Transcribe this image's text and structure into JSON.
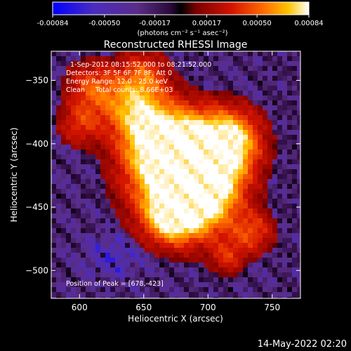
{
  "colorbar": {
    "tick_labels": [
      "-0.00084",
      "-0.00050",
      "-0.00017",
      "0.00017",
      "0.00050",
      "0.00084"
    ],
    "tick_values": [
      -0.00084,
      -0.0005,
      -0.00017,
      0.00017,
      0.0005,
      0.00084
    ],
    "range": [
      -0.00084,
      0.00084
    ],
    "units_label": "(photons cm⁻² s⁻¹ asec⁻²)",
    "colors": [
      "#0000ff",
      "#4b2cc0",
      "#5a2d88",
      "#2a0a3a",
      "#7a0000",
      "#d41400",
      "#ff6a00",
      "#ffc400",
      "#ffffff"
    ]
  },
  "chart_data": {
    "type": "heatmap",
    "title": "Reconstructed RHESSI Image",
    "xlabel": "Heliocentric X (arcsec)",
    "ylabel": "Heliocentric Y (arcsec)",
    "xlim": [
      578,
      772
    ],
    "ylim": [
      -522,
      -327
    ],
    "x_ticks": [
      600,
      650,
      700,
      750
    ],
    "y_ticks": [
      -350,
      -400,
      -450,
      -500
    ],
    "x_tick_labels": [
      "600",
      "650",
      "700",
      "750"
    ],
    "y_tick_labels": [
      "−350",
      "−400",
      "−450",
      "−500"
    ],
    "annotations": [
      "1-Sep-2012 08:15:52.000 to 08:21:52.000",
      "Detectors: 3F 5F 6F 7F 8F, Att 0",
      "Energy Range: 12.0 - 25.0 keV",
      "Clean     Total counts: 8.66E+03"
    ],
    "peak_label": "Position of Peak = [678,-423]",
    "peak": [
      678,
      -423
    ]
  },
  "timestamp": "14-May-2022 02:20"
}
